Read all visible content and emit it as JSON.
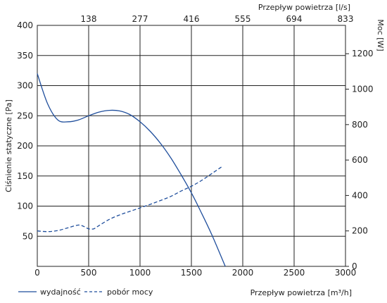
{
  "chart_data": {
    "type": "line",
    "title": "",
    "xlabel": "Przepływ powietrza [m³/h]",
    "x2label": "Przepływ powietrza [l/s]",
    "ylabel": "Ciśnienie statyczne [Pa]",
    "y2label": "Moc [W]",
    "xlim": [
      0,
      3000
    ],
    "ylim": [
      0,
      400
    ],
    "y2lim": [
      0,
      1360
    ],
    "xticks": [
      "0",
      "500",
      "1000",
      "1500",
      "2000",
      "2500",
      "3000"
    ],
    "x2ticks": [
      "138",
      "277",
      "416",
      "555",
      "694",
      "833"
    ],
    "yticks": [
      "50",
      "100",
      "150",
      "200",
      "250",
      "300",
      "350",
      "400"
    ],
    "y2ticks": [
      "0",
      "200",
      "400",
      "600",
      "800",
      "1000",
      "1200"
    ],
    "grid": true,
    "legend_position": "bottom-left",
    "colors": {
      "line": "#1f4e9c",
      "axis": "#222222"
    },
    "series": [
      {
        "name": "wydajność",
        "axis": "left",
        "style": "solid",
        "x": [
          0,
          100,
          200,
          300,
          400,
          500,
          600,
          700,
          800,
          900,
          1000,
          1100,
          1200,
          1300,
          1400,
          1500,
          1600,
          1700,
          1800,
          1830
        ],
        "y": [
          320,
          270,
          243,
          240,
          243,
          250,
          256,
          259,
          258,
          252,
          240,
          224,
          204,
          180,
          152,
          122,
          88,
          52,
          12,
          0
        ]
      },
      {
        "name": "pobór mocy",
        "axis": "right",
        "style": "dashed",
        "x": [
          0,
          100,
          200,
          300,
          400,
          450,
          500,
          550,
          600,
          700,
          800,
          900,
          1000,
          1100,
          1200,
          1300,
          1400,
          1500,
          1600,
          1700,
          1800
        ],
        "y": [
          200,
          196,
          202,
          218,
          233,
          226,
          212,
          212,
          230,
          265,
          290,
          310,
          330,
          350,
          372,
          395,
          425,
          452,
          485,
          524,
          564
        ]
      }
    ]
  }
}
